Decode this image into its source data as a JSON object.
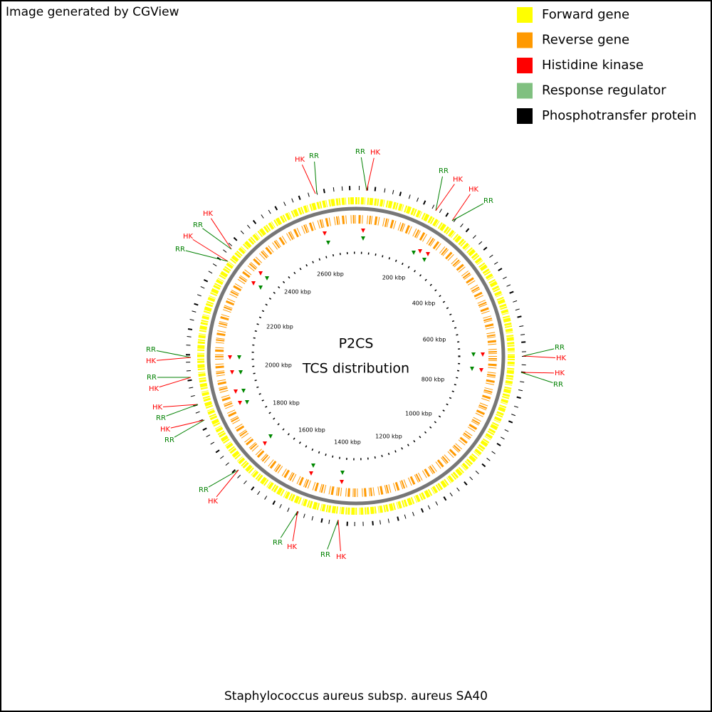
{
  "header": {
    "title": "Image generated by CGView"
  },
  "legend": [
    {
      "label": "Forward gene",
      "color": "#ffff00"
    },
    {
      "label": "Reverse gene",
      "color": "#ff9900"
    },
    {
      "label": "Histidine kinase",
      "color": "#ff0000"
    },
    {
      "label": "Response regulator",
      "color": "#80c080"
    },
    {
      "label": "Phosphotransfer protein",
      "color": "#000000"
    }
  ],
  "center": {
    "line1": "P2CS",
    "line2": "TCS distribution"
  },
  "scale_labels": [
    "200 kbp",
    "400 kbp",
    "600 kbp",
    "800 kbp",
    "1000 kbp",
    "1200 kbp",
    "1400 kbp",
    "1600 kbp",
    "1800 kbp",
    "2000 kbp",
    "2200 kbp",
    "2400 kbp",
    "2600 kbp"
  ],
  "features": [
    {
      "label": "HK",
      "kind": "hk"
    },
    {
      "label": "RR",
      "kind": "rr"
    },
    {
      "label": "RR",
      "kind": "rr"
    },
    {
      "label": "HK",
      "kind": "hk"
    },
    {
      "label": "RR",
      "kind": "rr"
    },
    {
      "label": "HK",
      "kind": "hk"
    },
    {
      "label": "HK",
      "kind": "hk"
    },
    {
      "label": "RR",
      "kind": "rr"
    },
    {
      "label": "RR",
      "kind": "rr"
    },
    {
      "label": "HK",
      "kind": "hk"
    },
    {
      "label": "HK",
      "kind": "hk"
    },
    {
      "label": "RR",
      "kind": "rr"
    },
    {
      "label": "HK",
      "kind": "hk"
    },
    {
      "label": "RR",
      "kind": "rr"
    },
    {
      "label": "HK",
      "kind": "hk"
    },
    {
      "label": "RR",
      "kind": "rr"
    },
    {
      "label": "RR",
      "kind": "rr"
    },
    {
      "label": "HK",
      "kind": "hk"
    },
    {
      "label": "RR",
      "kind": "rr"
    },
    {
      "label": "HK",
      "kind": "hk"
    },
    {
      "label": "HK",
      "kind": "hk"
    },
    {
      "label": "RR",
      "kind": "rr"
    },
    {
      "label": "HK",
      "kind": "hk"
    },
    {
      "label": "RR",
      "kind": "rr"
    },
    {
      "label": "RR",
      "kind": "rr"
    },
    {
      "label": "HK",
      "kind": "hk"
    },
    {
      "label": "RR",
      "kind": "rr"
    },
    {
      "label": "HK",
      "kind": "hk"
    },
    {
      "label": "RR",
      "kind": "rr"
    },
    {
      "label": "HK",
      "kind": "hk"
    }
  ],
  "caption": "Staphylococcus aureus subsp. aureus SA40"
}
